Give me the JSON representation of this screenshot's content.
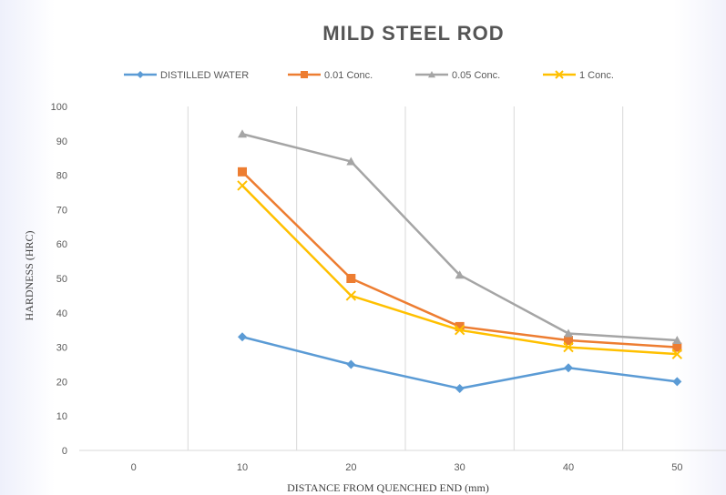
{
  "chart_data": {
    "type": "line",
    "title": "MILD STEEL ROD",
    "xlabel": "DISTANCE FROM QUENCHED END (mm)",
    "ylabel": "HARDNESS (HRC)",
    "x": [
      0,
      10,
      20,
      30,
      40,
      50
    ],
    "ylim": [
      0,
      100
    ],
    "yticks": [
      0,
      10,
      20,
      30,
      40,
      50,
      60,
      70,
      80,
      90,
      100
    ],
    "grid": "vertical",
    "legend": "top",
    "series": [
      {
        "name": "DISTILLED WATER",
        "color": "#5b9bd5",
        "marker": "diamond",
        "values": [
          null,
          33,
          25,
          18,
          24,
          20
        ]
      },
      {
        "name": "0.01 Conc.",
        "color": "#ed7d31",
        "marker": "square",
        "values": [
          null,
          81,
          50,
          36,
          32,
          30
        ]
      },
      {
        "name": "0.05 Conc.",
        "color": "#a5a5a5",
        "marker": "triangle",
        "values": [
          null,
          92,
          84,
          51,
          34,
          32
        ]
      },
      {
        "name": "1 Conc.",
        "color": "#ffc000",
        "marker": "cross",
        "values": [
          null,
          77,
          45,
          35,
          30,
          28
        ]
      }
    ]
  }
}
